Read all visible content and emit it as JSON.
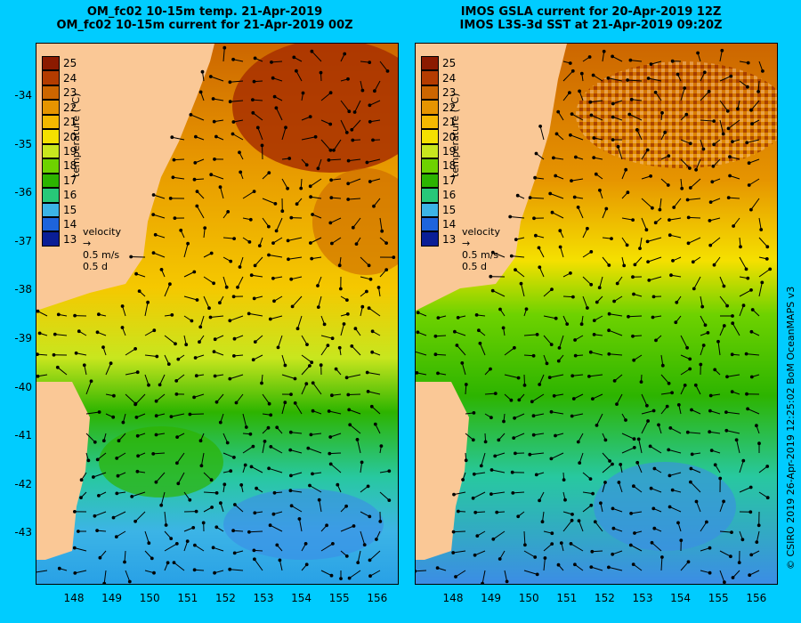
{
  "left_panel": {
    "title_line1": "OM_fc02 10-15m temp. 21-Apr-2019",
    "title_line2": "OM_fc02 10-15m current for 21-Apr-2019 00Z"
  },
  "right_panel": {
    "title_line1": "IMOS GSLA current for 20-Apr-2019 12Z",
    "title_line2": "IMOS L3S-3d SST at 21-Apr-2019 09:20Z"
  },
  "y_ticks": [
    "-34",
    "-35",
    "-36",
    "-37",
    "-38",
    "-39",
    "-40",
    "-41",
    "-42",
    "-43"
  ],
  "x_ticks": [
    "148",
    "149",
    "150",
    "151",
    "152",
    "153",
    "154",
    "155",
    "156"
  ],
  "colorbar": {
    "title": "temperature (°C)",
    "labels": [
      "25",
      "24",
      "23",
      "22",
      "21",
      "20",
      "19",
      "18",
      "17",
      "16",
      "15",
      "14",
      "13"
    ],
    "colors": [
      "#8b1a00",
      "#b43c00",
      "#cc6600",
      "#e69400",
      "#f5b800",
      "#f5e000",
      "#c8e61e",
      "#6ed200",
      "#2db400",
      "#28c878",
      "#3cb4e6",
      "#1e64dc",
      "#0a1e96"
    ]
  },
  "velocity_key": {
    "label": "velocity",
    "speed": "0.5 m/s",
    "time": "0.5 d"
  },
  "credit": "© CSIRO 2019   26-Apr-2019 12:25:02 BoM OceanMAPS v3",
  "colors": {
    "background": "#00ccff",
    "land": "#fac896"
  }
}
